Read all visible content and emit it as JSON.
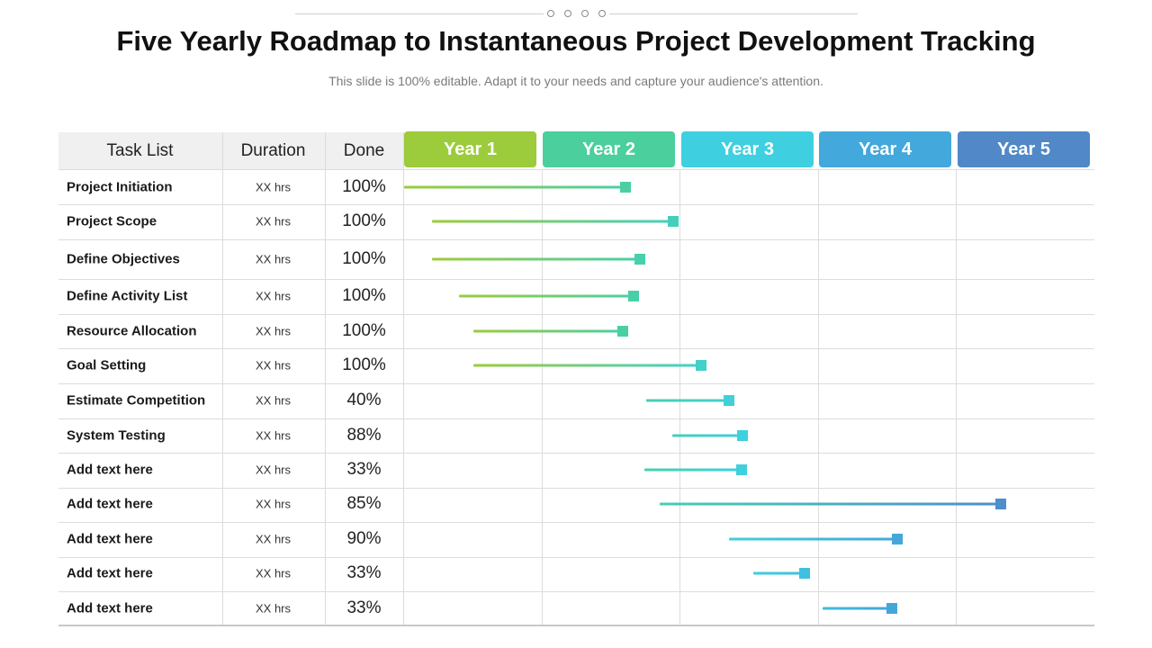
{
  "header": {
    "title": "Five Yearly Roadmap to Instantaneous Project Development Tracking",
    "subtitle": "This slide is 100% editable. Adapt it to your needs and capture your audience's attention."
  },
  "table": {
    "columns": {
      "task": "Task List",
      "duration": "Duration",
      "done": "Done"
    },
    "years": [
      {
        "label": "Year 1",
        "color": "#9ccb3b"
      },
      {
        "label": "Year 2",
        "color": "#4bcf9d"
      },
      {
        "label": "Year 3",
        "color": "#3ed0e0"
      },
      {
        "label": "Year 4",
        "color": "#43a8db"
      },
      {
        "label": "Year 5",
        "color": "#5088c8"
      }
    ],
    "rows": [
      {
        "task": "Project Initiation",
        "duration": "XX  hrs",
        "done": "100%",
        "start": 0.0,
        "end": 1.6
      },
      {
        "task": "Project Scope",
        "duration": "XX  hrs",
        "done": "100%",
        "start": 0.2,
        "end": 1.95
      },
      {
        "task": "Define Objectives",
        "duration": "XX  hrs",
        "done": "100%",
        "start": 0.2,
        "end": 1.71
      },
      {
        "task": "Define Activity List",
        "duration": "XX  hrs",
        "done": "100%",
        "start": 0.4,
        "end": 1.66
      },
      {
        "task": "Resource Allocation",
        "duration": "XX  hrs",
        "done": "100%",
        "start": 0.5,
        "end": 1.58
      },
      {
        "task": "Goal Setting",
        "duration": "XX  hrs",
        "done": "100%",
        "start": 0.5,
        "end": 2.15
      },
      {
        "task": "Estimate Competition",
        "duration": "XX  hrs",
        "done": "40%",
        "start": 1.75,
        "end": 2.35
      },
      {
        "task": "System  Testing",
        "duration": "XX  hrs",
        "done": "88%",
        "start": 1.94,
        "end": 2.45
      },
      {
        "task": "Add  text here",
        "duration": "XX  hrs",
        "done": "33%",
        "start": 1.74,
        "end": 2.44
      },
      {
        "task": "Add  text here",
        "duration": "XX  hrs",
        "done": "85%",
        "start": 1.85,
        "end": 4.32
      },
      {
        "task": "Add  text here",
        "duration": "XX  hrs",
        "done": "90%",
        "start": 2.35,
        "end": 3.57
      },
      {
        "task": "Add  text here",
        "duration": "XX  hrs",
        "done": "33%",
        "start": 2.53,
        "end": 2.9
      },
      {
        "task": "Add  text here",
        "duration": "XX  hrs",
        "done": "33%",
        "start": 3.03,
        "end": 3.53
      }
    ]
  }
}
